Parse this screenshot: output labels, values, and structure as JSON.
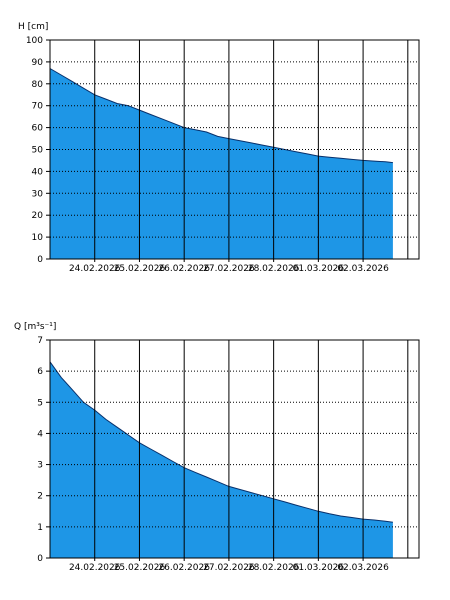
{
  "chart_data": [
    {
      "type": "area",
      "title": "",
      "ylabel": "H [cm]",
      "xlabel": "",
      "ylim": [
        0,
        100
      ],
      "y_ticks": [
        0,
        10,
        20,
        30,
        40,
        50,
        60,
        70,
        80,
        90,
        100
      ],
      "x_tick_labels": [
        "24.02.2026",
        "25.02.2026",
        "26.02.2026",
        "27.02.2026",
        "28.02.2026",
        "01.03.2026",
        "02.03.2026"
      ],
      "x_range": [
        "2026-02-23T00:00",
        "2026-03-03T06:00"
      ],
      "grid": {
        "vertical": "solid",
        "horizontal": "dotted"
      },
      "fill_color": "#1E96E6",
      "series": [
        {
          "x": [
            "2026-02-23T00:00",
            "2026-02-23T06:00",
            "2026-02-23T12:00",
            "2026-02-23T18:00",
            "2026-02-24T00:00",
            "2026-02-24T06:00",
            "2026-02-24T12:00",
            "2026-02-24T18:00",
            "2026-02-25T00:00",
            "2026-02-25T06:00",
            "2026-02-25T12:00",
            "2026-02-25T18:00",
            "2026-02-26T00:00",
            "2026-02-26T06:00",
            "2026-02-26T12:00",
            "2026-02-26T18:00",
            "2026-02-27T00:00",
            "2026-02-27T06:00",
            "2026-02-27T12:00",
            "2026-02-27T18:00",
            "2026-02-28T00:00",
            "2026-02-28T06:00",
            "2026-02-28T12:00",
            "2026-02-28T18:00",
            "2026-03-01T00:00",
            "2026-03-01T06:00",
            "2026-03-01T12:00",
            "2026-03-01T18:00",
            "2026-03-02T00:00",
            "2026-03-02T06:00",
            "2026-03-02T12:00",
            "2026-03-02T16:00"
          ],
          "y": [
            87,
            84,
            81,
            78,
            75,
            73,
            71,
            70,
            68,
            66,
            64,
            62,
            60,
            59,
            58,
            56,
            55,
            54,
            53,
            52,
            51,
            50,
            49,
            48,
            47,
            46.5,
            46,
            45.5,
            45,
            44.7,
            44.4,
            44
          ]
        }
      ]
    },
    {
      "type": "area",
      "title": "",
      "ylabel": "Q [m³s⁻¹]",
      "xlabel": "",
      "ylim": [
        0,
        7
      ],
      "y_ticks": [
        0,
        1,
        2,
        3,
        4,
        5,
        6,
        7
      ],
      "x_tick_labels": [
        "24.02.2026",
        "25.02.2026",
        "26.02.2026",
        "27.02.2026",
        "28.02.2026",
        "01.03.2026",
        "02.03.2026"
      ],
      "x_range": [
        "2026-02-23T00:00",
        "2026-03-03T06:00"
      ],
      "grid": {
        "vertical": "solid",
        "horizontal": "dotted"
      },
      "fill_color": "#1E96E6",
      "series": [
        {
          "x": [
            "2026-02-23T00:00",
            "2026-02-23T06:00",
            "2026-02-23T12:00",
            "2026-02-23T18:00",
            "2026-02-24T00:00",
            "2026-02-24T06:00",
            "2026-02-24T12:00",
            "2026-02-24T18:00",
            "2026-02-25T00:00",
            "2026-02-25T06:00",
            "2026-02-25T12:00",
            "2026-02-25T18:00",
            "2026-02-26T00:00",
            "2026-02-26T06:00",
            "2026-02-26T12:00",
            "2026-02-26T18:00",
            "2026-02-27T00:00",
            "2026-02-27T06:00",
            "2026-02-27T12:00",
            "2026-02-27T18:00",
            "2026-02-28T00:00",
            "2026-02-28T06:00",
            "2026-02-28T12:00",
            "2026-02-28T18:00",
            "2026-03-01T00:00",
            "2026-03-01T06:00",
            "2026-03-01T12:00",
            "2026-03-01T18:00",
            "2026-03-02T00:00",
            "2026-03-02T06:00",
            "2026-03-02T12:00",
            "2026-03-02T16:00"
          ],
          "y": [
            6.3,
            5.8,
            5.4,
            5.0,
            4.75,
            4.45,
            4.2,
            3.95,
            3.7,
            3.5,
            3.3,
            3.1,
            2.9,
            2.75,
            2.6,
            2.45,
            2.3,
            2.2,
            2.1,
            2.0,
            1.9,
            1.8,
            1.7,
            1.6,
            1.5,
            1.42,
            1.35,
            1.3,
            1.25,
            1.22,
            1.18,
            1.15
          ]
        }
      ]
    }
  ]
}
